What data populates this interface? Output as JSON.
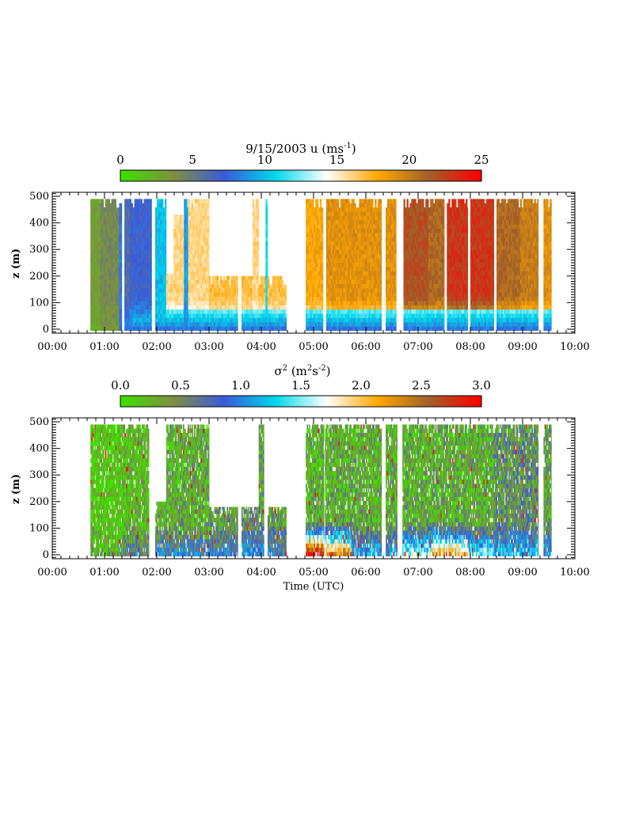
{
  "page": {
    "background": "#ffffff"
  },
  "chart_data": [
    {
      "type": "heatmap",
      "title": "9/15/2003   u   (ms",
      "title_sup": "-1",
      "title_close": ")",
      "colorbar": {
        "ticks": [
          "0",
          "5",
          "10",
          "15",
          "20",
          "25"
        ],
        "range": [
          0,
          25
        ],
        "colors": [
          "#3ee000",
          "#7f8f40",
          "#3a5adb",
          "#00d8ea",
          "#ffffff",
          "#ffa800",
          "#a0602a",
          "#ff0000"
        ]
      },
      "xlabel": "",
      "ylabel": "z (m)",
      "x_ticks": [
        "00:00",
        "01:00",
        "02:00",
        "03:00",
        "04:00",
        "05:00",
        "06:00",
        "07:00",
        "08:00",
        "09:00",
        "10:00"
      ],
      "y_ticks": [
        "0",
        "100",
        "200",
        "300",
        "400",
        "500"
      ],
      "xlim_hours": [
        0,
        10
      ],
      "ylim_m": [
        -15,
        515
      ],
      "data_window_utc": [
        "00:44",
        "09:32"
      ],
      "value_range_approx": [
        0,
        25
      ],
      "description_note_free": false,
      "blocks": [
        {
          "t0": 0.73,
          "t1": 0.92,
          "ztop": 490,
          "u_low": 2,
          "u_high": 3
        },
        {
          "t0": 0.92,
          "t1": 1.28,
          "ztop": 490,
          "u_low": 3,
          "u_high": 4
        },
        {
          "t0": 1.28,
          "t1": 1.33,
          "ztop": 490,
          "u_low": 7,
          "u_high": 8
        },
        {
          "t0": 1.38,
          "t1": 1.48,
          "ztop": 490,
          "u_low": 10,
          "u_high": 6
        },
        {
          "t0": 1.48,
          "t1": 1.9,
          "ztop": 490,
          "u_low": 12,
          "u_high": 7
        },
        {
          "t0": 1.97,
          "t1": 2.18,
          "ztop": 490,
          "u_low": 10,
          "u_high": 10
        },
        {
          "t0": 2.18,
          "t1": 2.32,
          "ztop": 210,
          "u_low": 10,
          "u_high": 16
        },
        {
          "t0": 2.32,
          "t1": 2.52,
          "ztop": 430,
          "u_low": 10,
          "u_high": 16
        },
        {
          "t0": 2.52,
          "t1": 2.6,
          "ztop": 490,
          "u_low": 8,
          "u_high": 9
        },
        {
          "t0": 2.6,
          "t1": 3.0,
          "ztop": 490,
          "u_low": 10,
          "u_high": 16
        },
        {
          "t0": 3.0,
          "t1": 3.55,
          "ztop": 200,
          "u_low": 10,
          "u_high": 17
        },
        {
          "t0": 3.62,
          "t1": 3.83,
          "ztop": 200,
          "u_low": 10,
          "u_high": 17
        },
        {
          "t0": 3.83,
          "t1": 3.95,
          "ztop": 490,
          "u_low": 10,
          "u_high": 16
        },
        {
          "t0": 3.95,
          "t1": 4.08,
          "ztop": 200,
          "u_low": 10,
          "u_high": 17
        },
        {
          "t0": 4.08,
          "t1": 4.12,
          "ztop": 490,
          "u_low": 10,
          "u_high": 11
        },
        {
          "t0": 4.12,
          "t1": 4.48,
          "ztop": 200,
          "u_low": 10,
          "u_high": 17
        },
        {
          "t0": 4.85,
          "t1": 5.18,
          "ztop": 490,
          "u_low": 11,
          "u_high": 18
        },
        {
          "t0": 5.24,
          "t1": 5.72,
          "ztop": 490,
          "u_low": 11,
          "u_high": 19
        },
        {
          "t0": 5.72,
          "t1": 6.3,
          "ztop": 490,
          "u_low": 11,
          "u_high": 19
        },
        {
          "t0": 6.38,
          "t1": 6.58,
          "ztop": 490,
          "u_low": 11,
          "u_high": 19
        },
        {
          "t0": 6.72,
          "t1": 7.2,
          "ztop": 490,
          "u_low": 11,
          "u_high": 22
        },
        {
          "t0": 7.2,
          "t1": 7.5,
          "ztop": 490,
          "u_low": 11,
          "u_high": 21
        },
        {
          "t0": 7.55,
          "t1": 7.95,
          "ztop": 490,
          "u_low": 11,
          "u_high": 23
        },
        {
          "t0": 8.0,
          "t1": 8.45,
          "ztop": 490,
          "u_low": 11,
          "u_high": 23
        },
        {
          "t0": 8.5,
          "t1": 8.95,
          "ztop": 490,
          "u_low": 11,
          "u_high": 21
        },
        {
          "t0": 8.95,
          "t1": 9.3,
          "ztop": 490,
          "u_low": 11,
          "u_high": 20
        },
        {
          "t0": 9.4,
          "t1": 9.55,
          "ztop": 490,
          "u_low": 11,
          "u_high": 19
        }
      ]
    },
    {
      "type": "heatmap",
      "title": "",
      "colorbar_label": "σ",
      "colorbar_label_sup": "2",
      "colorbar_label_units": " (m",
      "colorbar_label_units_sup1": "2",
      "colorbar_label_units_mid": "s",
      "colorbar_label_units_sup2": "-2",
      "colorbar_label_units_close": ")",
      "colorbar": {
        "ticks": [
          "0.0",
          "0.5",
          "1.0",
          "1.5",
          "2.0",
          "2.5",
          "3.0"
        ],
        "range": [
          0,
          3
        ],
        "colors": [
          "#3ee000",
          "#7f8f40",
          "#3a5adb",
          "#00d8ea",
          "#ffffff",
          "#ffa800",
          "#a0602a",
          "#ff0000"
        ]
      },
      "xlabel": "Time (UTC)",
      "ylabel": "z (m)",
      "x_ticks": [
        "00:00",
        "01:00",
        "02:00",
        "03:00",
        "04:00",
        "05:00",
        "06:00",
        "07:00",
        "08:00",
        "09:00",
        "10:00"
      ],
      "y_ticks": [
        "0",
        "100",
        "200",
        "300",
        "400",
        "500"
      ],
      "xlim_hours": [
        0,
        10
      ],
      "ylim_m": [
        -15,
        515
      ],
      "value_range_approx": [
        0,
        3
      ],
      "blocks": [
        {
          "t0": 0.73,
          "t1": 1.35,
          "ztop": 490,
          "s_low": 0.3,
          "s_high": 0.1
        },
        {
          "t0": 1.35,
          "t1": 1.85,
          "ztop": 490,
          "s_low": 0.7,
          "s_high": 0.2
        },
        {
          "t0": 1.97,
          "t1": 2.18,
          "ztop": 200,
          "s_low": 0.9,
          "s_high": 0.3
        },
        {
          "t0": 2.18,
          "t1": 2.55,
          "ztop": 490,
          "s_low": 0.9,
          "s_high": 0.3
        },
        {
          "t0": 2.55,
          "t1": 3.0,
          "ztop": 490,
          "s_low": 0.9,
          "s_high": 0.3
        },
        {
          "t0": 3.0,
          "t1": 3.55,
          "ztop": 180,
          "s_low": 0.9,
          "s_high": 0.4
        },
        {
          "t0": 3.62,
          "t1": 3.95,
          "ztop": 180,
          "s_low": 1.0,
          "s_high": 0.5
        },
        {
          "t0": 3.95,
          "t1": 4.05,
          "ztop": 490,
          "s_low": 1.0,
          "s_high": 0.4
        },
        {
          "t0": 4.12,
          "t1": 4.48,
          "ztop": 180,
          "s_low": 0.9,
          "s_high": 0.4
        },
        {
          "t0": 4.85,
          "t1": 5.2,
          "ztop": 490,
          "s_low": 2.9,
          "s_high": 0.3
        },
        {
          "t0": 5.22,
          "t1": 5.72,
          "ztop": 490,
          "s_low": 2.4,
          "s_high": 0.3
        },
        {
          "t0": 5.72,
          "t1": 6.3,
          "ztop": 490,
          "s_low": 1.2,
          "s_high": 0.3
        },
        {
          "t0": 6.38,
          "t1": 6.6,
          "ztop": 490,
          "s_low": 1.0,
          "s_high": 0.3
        },
        {
          "t0": 6.7,
          "t1": 7.25,
          "ztop": 490,
          "s_low": 1.6,
          "s_high": 0.3
        },
        {
          "t0": 7.25,
          "t1": 7.95,
          "ztop": 490,
          "s_low": 2.2,
          "s_high": 0.3
        },
        {
          "t0": 7.95,
          "t1": 8.45,
          "ztop": 490,
          "s_low": 1.5,
          "s_high": 0.3
        },
        {
          "t0": 8.45,
          "t1": 9.3,
          "ztop": 490,
          "s_low": 1.2,
          "s_high": 0.5
        },
        {
          "t0": 9.4,
          "t1": 9.55,
          "ztop": 490,
          "s_low": 1.1,
          "s_high": 0.4
        }
      ]
    }
  ]
}
